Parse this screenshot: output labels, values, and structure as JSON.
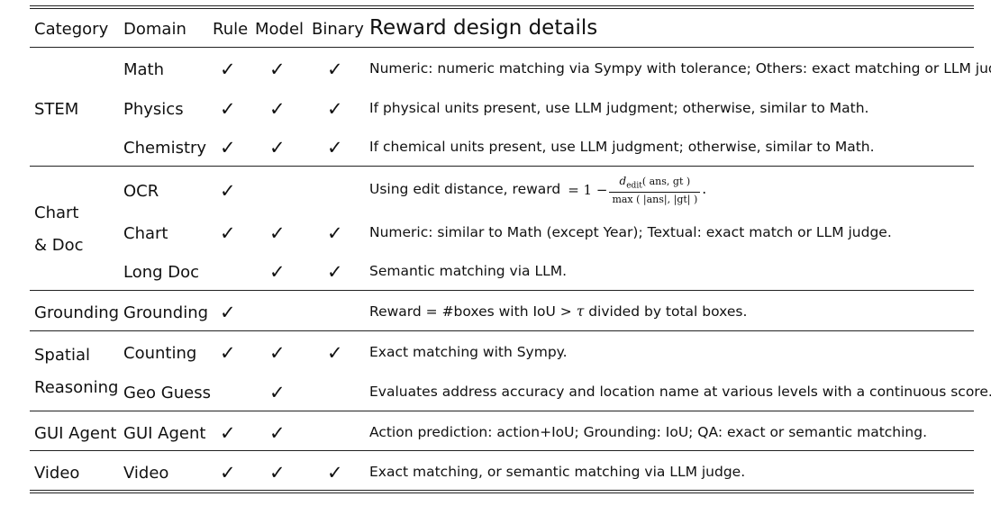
{
  "headers": {
    "category": "Category",
    "domain": "Domain",
    "rule": "Rule",
    "model": "Model",
    "binary": "Binary",
    "details": "Reward design details"
  },
  "check_mark": "✓",
  "rows": [
    {
      "category": "STEM",
      "domain": "Math",
      "rule": true,
      "model": true,
      "binary": true,
      "details": "Numeric: numeric matching via Sympy with tolerance; Others: exact matching or LLM judge."
    },
    {
      "domain": "Physics",
      "rule": true,
      "model": true,
      "binary": true,
      "details": "If physical units present, use LLM judgment; otherwise, similar to Math."
    },
    {
      "domain": "Chemistry",
      "rule": true,
      "model": true,
      "binary": true,
      "details": "If chemical units present, use LLM judgment; otherwise, similar to Math."
    },
    {
      "category_line1": "Chart",
      "category_line2": "& Doc",
      "domain": "OCR",
      "rule": true,
      "model": false,
      "binary": false,
      "details_prefix": "Using edit distance, reward",
      "formula": {
        "lhs": "= 1 −",
        "num_var": "d",
        "num_sub": "edit",
        "num_args": "( ans, gt )",
        "den": "max ( |ans|, |gt| )",
        "end": "."
      }
    },
    {
      "domain": "Chart",
      "rule": true,
      "model": true,
      "binary": true,
      "details": "Numeric: similar to Math (except Year); Textual: exact match or LLM judge."
    },
    {
      "domain": "Long Doc",
      "rule": false,
      "model": true,
      "binary": true,
      "details": "Semantic matching via LLM."
    },
    {
      "category": "Grounding",
      "domain": "Grounding",
      "rule": true,
      "model": false,
      "binary": false,
      "details_a": "Reward = #boxes with IoU >",
      "tau": "τ",
      "details_b": "divided by total boxes."
    },
    {
      "category_line1": "Spatial",
      "category_line2": "Reasoning",
      "domain": "Counting",
      "rule": true,
      "model": true,
      "binary": true,
      "details": "Exact matching with Sympy."
    },
    {
      "domain": "Geo Guess",
      "rule": false,
      "model": true,
      "binary": false,
      "details": "Evaluates address accuracy and location name at various levels with a continuous score."
    },
    {
      "category": "GUI Agent",
      "domain": "GUI Agent",
      "rule": true,
      "model": true,
      "binary": false,
      "details": "Action prediction: action+IoU; Grounding: IoU; QA: exact or semantic matching."
    },
    {
      "category": "Video",
      "domain": "Video",
      "rule": true,
      "model": true,
      "binary": true,
      "details": "Exact matching, or semantic matching via LLM judge."
    }
  ]
}
